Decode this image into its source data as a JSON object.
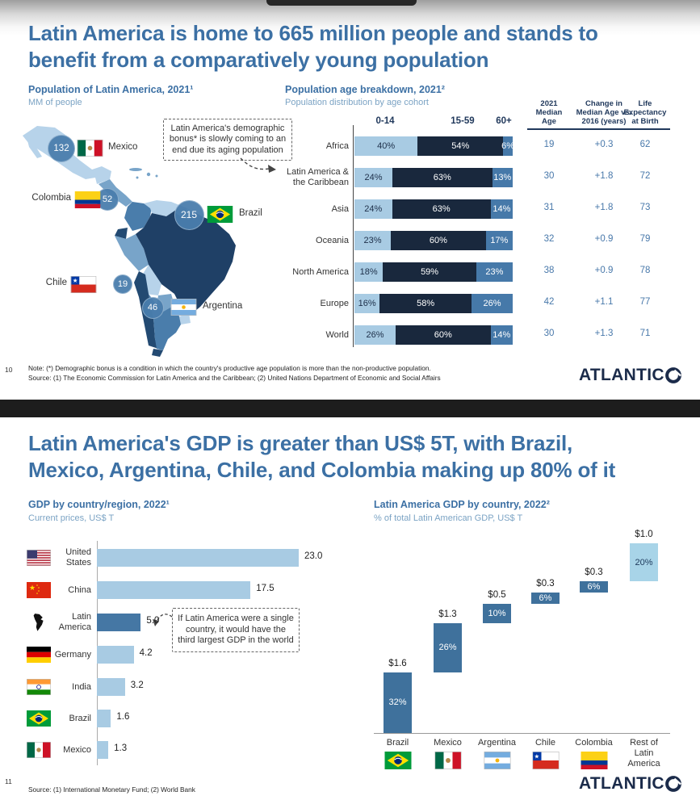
{
  "page": {
    "slide1_number": "10",
    "slide2_number": "11",
    "brand": "ATLANTIC"
  },
  "colors": {
    "title_blue": "#3c70a4",
    "subtitle_blue": "#7ba3c4",
    "navy": "#19283d",
    "steel_blue": "#4679a9",
    "light_blue": "#a8cbe3",
    "waterfall_dark": "#3f719c",
    "waterfall_light": "#a8d4e8",
    "logo_navy": "#1b2b4a",
    "table_value_blue": "#4878aa"
  },
  "slide1": {
    "title_lines": [
      "Latin America is home to 665 million people and stands to",
      "benefit from a comparatively young population"
    ],
    "map_section": {
      "title": "Population of Latin America, 2021¹",
      "subtitle": "MM of people",
      "callout": "Latin America's demographic\nbonus* is slowly coming to an\nend due its aging population",
      "countries": [
        {
          "name": "Mexico",
          "value": "132",
          "flag": "mx"
        },
        {
          "name": "Colombia",
          "value": "52",
          "flag": "co"
        },
        {
          "name": "Brazil",
          "value": "215",
          "flag": "br"
        },
        {
          "name": "Chile",
          "value": "19",
          "flag": "cl"
        },
        {
          "name": "Argentina",
          "value": "46",
          "flag": "ar"
        }
      ]
    },
    "age_section": {
      "title": "Population age breakdown, 2021²",
      "subtitle": "Population distribution by age cohort",
      "cohort_headers": [
        "0-14",
        "15-59",
        "60+"
      ],
      "table_headers": [
        "2021\nMedian\nAge",
        "Change in\nMedian Age vs.\n2016 (years)",
        "Life\nExpectancy\nat Birth"
      ],
      "rows": [
        {
          "label": "Africa",
          "pcts": [
            "40%",
            "54%",
            "6%"
          ],
          "values": [
            40,
            54,
            6
          ],
          "median": "19",
          "change": "+0.3",
          "life": "62"
        },
        {
          "label": "Latin America &\nthe Caribbean",
          "pcts": [
            "24%",
            "63%",
            "13%"
          ],
          "values": [
            24,
            63,
            13
          ],
          "median": "30",
          "change": "+1.8",
          "life": "72"
        },
        {
          "label": "Asia",
          "pcts": [
            "24%",
            "63%",
            "14%"
          ],
          "values": [
            24,
            63,
            14
          ],
          "median": "31",
          "change": "+1.8",
          "life": "73"
        },
        {
          "label": "Oceania",
          "pcts": [
            "23%",
            "60%",
            "17%"
          ],
          "values": [
            23,
            60,
            17
          ],
          "median": "32",
          "change": "+0.9",
          "life": "79"
        },
        {
          "label": "North America",
          "pcts": [
            "18%",
            "59%",
            "23%"
          ],
          "values": [
            18,
            59,
            23
          ],
          "median": "38",
          "change": "+0.9",
          "life": "78"
        },
        {
          "label": "Europe",
          "pcts": [
            "16%",
            "58%",
            "26%"
          ],
          "values": [
            16,
            58,
            26
          ],
          "median": "42",
          "change": "+1.1",
          "life": "77"
        },
        {
          "label": "World",
          "pcts": [
            "26%",
            "60%",
            "14%"
          ],
          "values": [
            26,
            60,
            14
          ],
          "median": "30",
          "change": "+1.3",
          "life": "71"
        }
      ]
    },
    "note": "Note: (*) Demographic bonus is a condition in which the country's productive age population is more than the non-productive population.",
    "source": "Source: (1) The Economic Commission for Latin America and the Caribbean; (2) United Nations Department of Economic and Social Affairs"
  },
  "slide2": {
    "title_lines": [
      "Latin America's GDP is greater than US$ 5T, with Brazil,",
      "Mexico, Argentina, Chile, and Colombia making up 80% of it"
    ],
    "gdp_section": {
      "title": "GDP by country/region, 2022¹",
      "subtitle": "Current prices, US$ T",
      "callout": "If Latin America were a single\ncountry, it would have the\nthird largest GDP in the world",
      "bars": [
        {
          "label": "United\nStates",
          "flag": "us",
          "value": 23.0,
          "display": "23.0",
          "highlight": false
        },
        {
          "label": "China",
          "flag": "cn",
          "value": 17.5,
          "display": "17.5",
          "highlight": false
        },
        {
          "label": "Latin\nAmerica",
          "flag": "latam",
          "value": 5.0,
          "display": "5.0",
          "highlight": true
        },
        {
          "label": "Germany",
          "flag": "de",
          "value": 4.2,
          "display": "4.2",
          "highlight": false
        },
        {
          "label": "India",
          "flag": "in",
          "value": 3.2,
          "display": "3.2",
          "highlight": false
        },
        {
          "label": "Brazil",
          "flag": "br",
          "value": 1.6,
          "display": "1.6",
          "highlight": false
        },
        {
          "label": "Mexico",
          "flag": "mx",
          "value": 1.3,
          "display": "1.3",
          "highlight": false
        }
      ]
    },
    "waterfall_section": {
      "title": "Latin America GDP by country, 2022²",
      "subtitle": "% of total Latin American GDP, US$ T",
      "bars": [
        {
          "label": "Brazil",
          "flag": "br",
          "amount": "$1.6",
          "pct": "32%",
          "value": 1.6,
          "light": false
        },
        {
          "label": "Mexico",
          "flag": "mx",
          "amount": "$1.3",
          "pct": "26%",
          "value": 1.3,
          "light": false
        },
        {
          "label": "Argentina",
          "flag": "ar",
          "amount": "$0.5",
          "pct": "10%",
          "value": 0.5,
          "light": false
        },
        {
          "label": "Chile",
          "flag": "cl",
          "amount": "$0.3",
          "pct": "6%",
          "value": 0.3,
          "light": false
        },
        {
          "label": "Colombia",
          "flag": "co",
          "amount": "$0.3",
          "pct": "6%",
          "value": 0.3,
          "light": false
        },
        {
          "label": "Rest of\nLatin\nAmerica",
          "flag": null,
          "amount": "$1.0",
          "pct": "20%",
          "value": 1.0,
          "light": true
        }
      ]
    },
    "source": "Source: (1) International Monetary Fund; (2) World Bank"
  },
  "chart_data": [
    {
      "type": "bubble-map",
      "title": "Population of Latin America, 2021",
      "unit": "MM of people",
      "points": [
        {
          "country": "Mexico",
          "value": 132
        },
        {
          "country": "Colombia",
          "value": 52
        },
        {
          "country": "Brazil",
          "value": 215
        },
        {
          "country": "Chile",
          "value": 19
        },
        {
          "country": "Argentina",
          "value": 46
        }
      ],
      "annotation": "Latin America's demographic bonus* is slowly coming to an end due its aging population"
    },
    {
      "type": "bar",
      "subtype": "stacked-horizontal-100pct",
      "title": "Population age breakdown, 2021",
      "xlabel": "Population distribution by age cohort",
      "categories": [
        "Africa",
        "Latin America & the Caribbean",
        "Asia",
        "Oceania",
        "North America",
        "Europe",
        "World"
      ],
      "series": [
        {
          "name": "0-14",
          "values": [
            40,
            24,
            24,
            23,
            18,
            16,
            26
          ]
        },
        {
          "name": "15-59",
          "values": [
            54,
            63,
            63,
            60,
            59,
            58,
            60
          ]
        },
        {
          "name": "60+",
          "values": [
            6,
            13,
            14,
            17,
            23,
            26,
            14
          ]
        }
      ],
      "table": {
        "headers": [
          "2021 Median Age",
          "Change in Median Age vs. 2016 (years)",
          "Life Expectancy at Birth"
        ],
        "rows": [
          [
            19,
            0.3,
            62
          ],
          [
            30,
            1.8,
            72
          ],
          [
            31,
            1.8,
            73
          ],
          [
            32,
            0.9,
            79
          ],
          [
            38,
            0.9,
            78
          ],
          [
            42,
            1.1,
            77
          ],
          [
            30,
            1.3,
            71
          ]
        ]
      }
    },
    {
      "type": "bar",
      "subtype": "horizontal",
      "title": "GDP by country/region, 2022",
      "unit": "Current prices, US$ T",
      "categories": [
        "United States",
        "China",
        "Latin America",
        "Germany",
        "India",
        "Brazil",
        "Mexico"
      ],
      "values": [
        23.0,
        17.5,
        5.0,
        4.2,
        3.2,
        1.6,
        1.3
      ],
      "highlighted_category": "Latin America",
      "annotation": "If Latin America were a single country, it would have the third largest GDP in the world"
    },
    {
      "type": "waterfall",
      "title": "Latin America GDP by country, 2022",
      "unit": "% of total Latin American GDP, US$ T",
      "categories": [
        "Brazil",
        "Mexico",
        "Argentina",
        "Chile",
        "Colombia",
        "Rest of Latin America"
      ],
      "values_usd_t": [
        1.6,
        1.3,
        0.5,
        0.3,
        0.3,
        1.0
      ],
      "values_pct": [
        32,
        26,
        10,
        6,
        6,
        20
      ]
    }
  ]
}
